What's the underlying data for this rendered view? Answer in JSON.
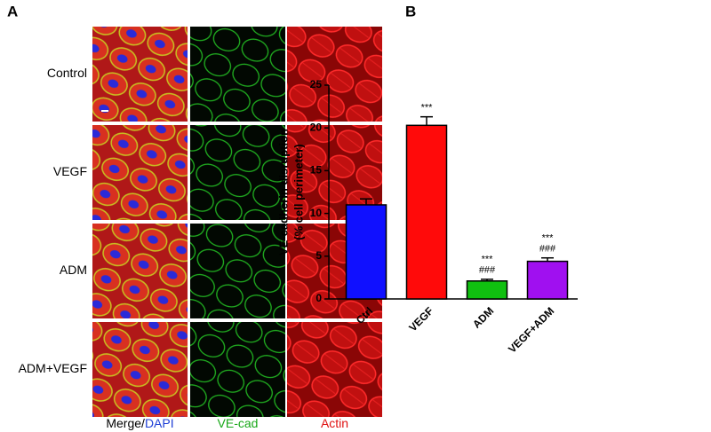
{
  "panel_a": {
    "label": "A",
    "rows": [
      "Control",
      "VEGF",
      "ADM",
      "ADM+VEGF"
    ],
    "columns": [
      [
        "Merge/",
        "DAPI"
      ],
      [
        "VE-cad"
      ],
      [
        "Actin"
      ]
    ]
  },
  "chart_data": {
    "type": "bar",
    "panel_label": "B",
    "ylabel": [
      "VE-cadherin disruption",
      "(% cell perimeter)"
    ],
    "categories": [
      "Ctrl",
      "VEGF",
      "ADM",
      "VEGF+ADM"
    ],
    "values": [
      11,
      20.3,
      2.1,
      4.4
    ],
    "errors": [
      0.7,
      1.0,
      0.2,
      0.4
    ],
    "colors": [
      "#1010ff",
      "#ff0a0a",
      "#10c010",
      "#a010f0"
    ],
    "ylim": [
      0,
      25
    ],
    "yticks": [
      0,
      5,
      10,
      15,
      20,
      25
    ],
    "annotations": [
      {
        "category": "VEGF",
        "lines": [
          "***"
        ]
      },
      {
        "category": "ADM",
        "lines": [
          "***",
          "###"
        ]
      },
      {
        "category": "VEGF+ADM",
        "lines": [
          "***",
          "###"
        ]
      }
    ]
  }
}
